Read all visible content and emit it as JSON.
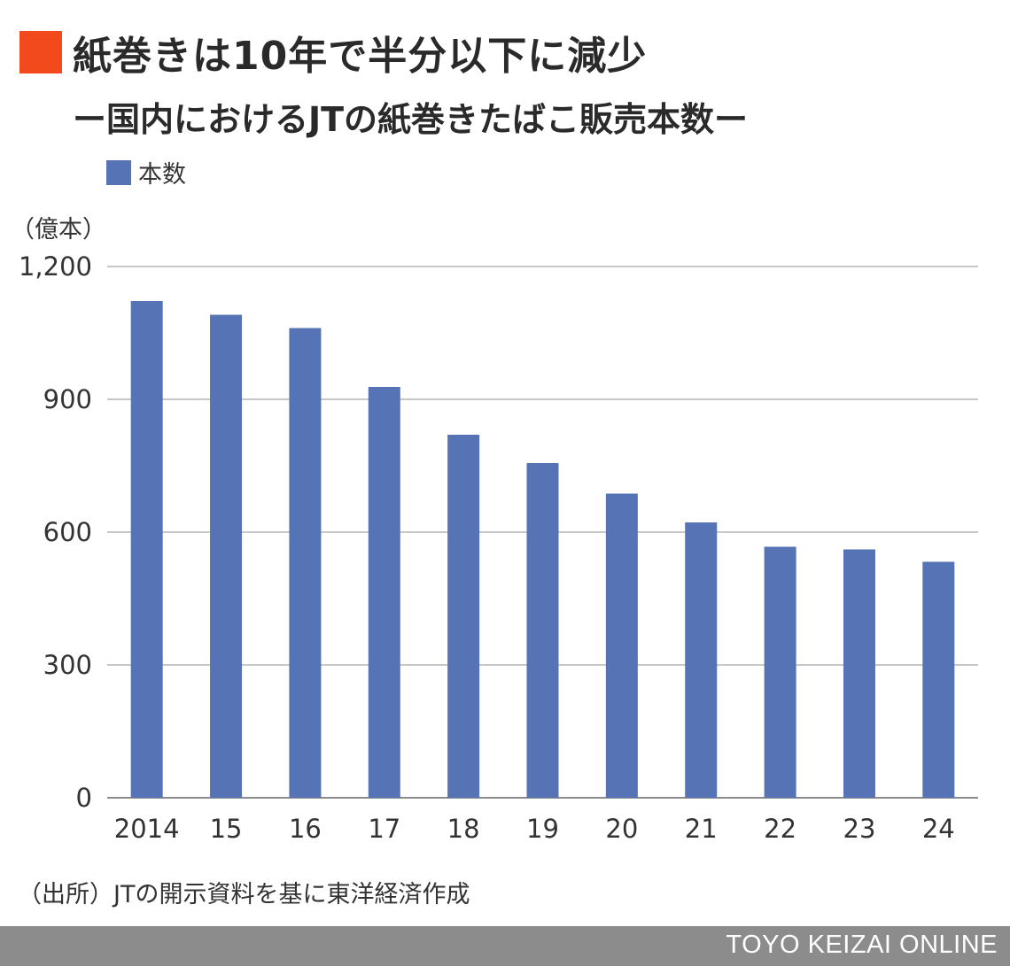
{
  "title": {
    "main": "紙巻きは10年で半分以下に減少",
    "subtitle": "ー国内におけるJTの紙巻きたばこ販売本数ー"
  },
  "source": "（出所）JTの開示資料を基に東洋経済作成",
  "footer": {
    "brand": "TOYO KEIZAI ONLINE"
  },
  "colors": {
    "accent": "#f24a1d",
    "bar": "#5673b5",
    "gridline": "#a6a6a6",
    "footer": "#8c8c8c"
  },
  "chart_data": {
    "type": "bar",
    "title": "紙巻きは10年で半分以下に減少",
    "subtitle": "ー国内におけるJTの紙巻きたばこ販売本数ー",
    "unit": "（億本）",
    "xlabel": "",
    "ylabel": "",
    "categories": [
      "2014",
      "15",
      "16",
      "17",
      "18",
      "19",
      "20",
      "21",
      "22",
      "23",
      "24"
    ],
    "series": [
      {
        "name": "本数",
        "values": [
          1122,
          1091,
          1061,
          928,
          820,
          756,
          687,
          622,
          567,
          561,
          533
        ]
      }
    ],
    "ylim": [
      0,
      1200
    ],
    "yticks": [
      0,
      300,
      600,
      900,
      1200
    ],
    "ytick_labels": [
      "0",
      "300",
      "600",
      "900",
      "1,200"
    ],
    "grid": true,
    "legend": "top-left"
  }
}
